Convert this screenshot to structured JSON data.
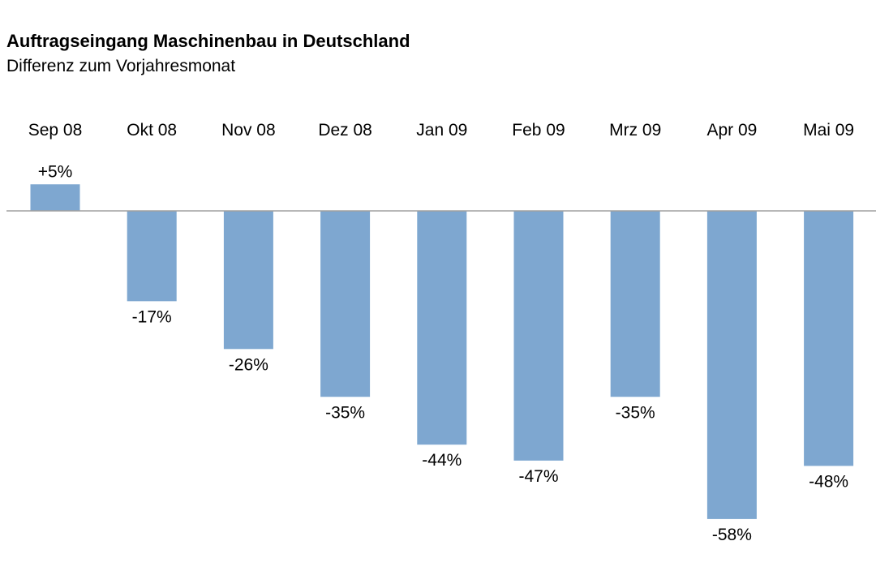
{
  "title": "Auftragseingang Maschinenbau in Deutschland",
  "subtitle": "Differenz zum Vorjahresmonat",
  "colors": {
    "bar": "#7ea7d0",
    "baseline": "#a0a0a0",
    "text": "#000000"
  },
  "chart_data": {
    "type": "bar",
    "title": "Auftragseingang Maschinenbau in Deutschland",
    "subtitle": "Differenz zum Vorjahresmonat",
    "categories": [
      "Sep 08",
      "Okt 08",
      "Nov 08",
      "Dez 08",
      "Jan 09",
      "Feb 09",
      "Mrz 09",
      "Apr 09",
      "Mai 09"
    ],
    "values": [
      5,
      -17,
      -26,
      -35,
      -44,
      -47,
      -35,
      -58,
      -48
    ],
    "data_labels": [
      "+5%",
      "-17%",
      "-26%",
      "-35%",
      "-44%",
      "-47%",
      "-35%",
      "-58%",
      "-48%"
    ],
    "unit": "%",
    "category_labels_position": "top",
    "grid": false,
    "legend": "none"
  }
}
